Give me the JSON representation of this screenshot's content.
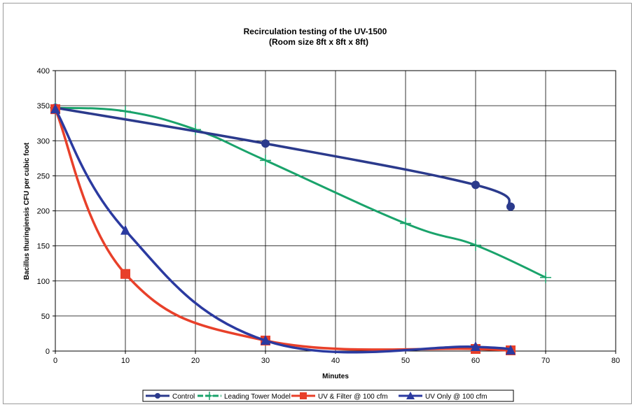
{
  "chart_data": {
    "type": "line",
    "title": "Recirculation testing of the UV-1500",
    "subtitle": "(Room size 8ft x 8ft x 8ft)",
    "xlabel": "Minutes",
    "ylabel": "Bacillus thuringiensis CFU per cubic foot",
    "xlim": [
      0,
      80
    ],
    "ylim": [
      0,
      400
    ],
    "x_ticks": [
      0,
      10,
      20,
      30,
      40,
      50,
      60,
      70,
      80
    ],
    "y_ticks": [
      0,
      50,
      100,
      150,
      200,
      250,
      300,
      350,
      400
    ],
    "grid": true,
    "legend_position": "bottom",
    "series": [
      {
        "name": "Control",
        "color": "#2b3a8c",
        "marker": "circle",
        "points": [
          [
            0,
            347
          ],
          [
            30,
            296
          ],
          [
            60,
            237
          ],
          [
            65,
            206
          ]
        ]
      },
      {
        "name": "Leading Tower Model",
        "color": "#1aa36b",
        "marker": "plus",
        "points": [
          [
            0,
            347
          ],
          [
            10,
            342
          ],
          [
            20,
            316
          ],
          [
            30,
            272
          ],
          [
            50,
            182
          ],
          [
            60,
            151
          ],
          [
            70,
            105
          ]
        ]
      },
      {
        "name": "UV & Filter @ 100 cfm",
        "color": "#e8402a",
        "marker": "square",
        "points": [
          [
            0,
            345
          ],
          [
            10,
            110
          ],
          [
            30,
            15
          ],
          [
            60,
            3
          ],
          [
            65,
            1
          ]
        ]
      },
      {
        "name": "UV Only @ 100 cfm",
        "color": "#2b3aa0",
        "marker": "triangle",
        "points": [
          [
            0,
            345
          ],
          [
            10,
            172
          ],
          [
            30,
            15
          ],
          [
            60,
            6
          ],
          [
            65,
            1
          ]
        ]
      }
    ]
  }
}
